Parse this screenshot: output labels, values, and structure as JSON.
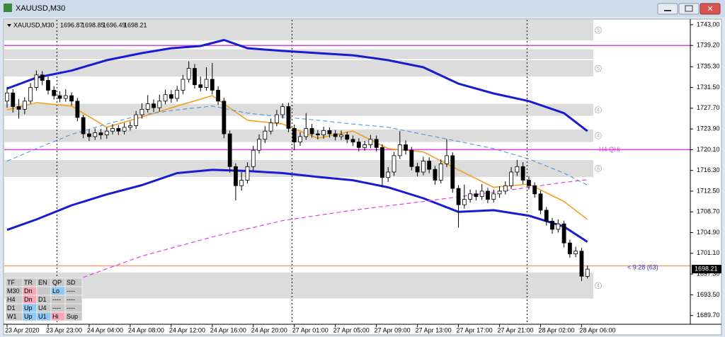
{
  "window_title": "XAUUSD,M30",
  "chart_data": {
    "type": "candlestick",
    "symbol": "XAUUSD,M30",
    "ylim": [
      1688.1,
      1743.9
    ],
    "yticks": [
      {
        "value": 1743.0,
        "label": "1743.00"
      },
      {
        "value": 1739.2,
        "label": "1739.20"
      },
      {
        "value": 1735.3,
        "label": "1735.30"
      },
      {
        "value": 1731.5,
        "label": "1731.50"
      },
      {
        "value": 1727.7,
        "label": "1727.70"
      },
      {
        "value": 1723.9,
        "label": "1723.90"
      },
      {
        "value": 1720.1,
        "label": "1720.10"
      },
      {
        "value": 1716.3,
        "label": "1716.30"
      },
      {
        "value": 1712.5,
        "label": "1712.50"
      },
      {
        "value": 1708.7,
        "label": "1708.70"
      },
      {
        "value": 1704.9,
        "label": "1704.90"
      },
      {
        "value": 1701.1,
        "label": "1701.10"
      },
      {
        "value": 1697.3,
        "label": "1697.30"
      },
      {
        "value": 1693.5,
        "label": "1693.50"
      },
      {
        "value": 1689.7,
        "label": "1689.70"
      }
    ],
    "categories": [
      "23 Apr 2020",
      null,
      null,
      null,
      null,
      null,
      null,
      "23 Apr 23:00",
      null,
      null,
      null,
      null,
      null,
      null,
      "24 Apr 04:00",
      null,
      null,
      null,
      null,
      null,
      null,
      "24 Apr 08:00",
      null,
      null,
      null,
      null,
      null,
      null,
      "24 Apr 12:00",
      null,
      null,
      null,
      null,
      null,
      null,
      "24 Apr 16:00",
      null,
      null,
      null,
      null,
      null,
      null,
      "24 Apr 20:00",
      null,
      null,
      null,
      null,
      null,
      null,
      "27 Apr 01:00",
      null,
      null,
      null,
      null,
      null,
      null,
      "27 Apr 05:00",
      null,
      null,
      null,
      null,
      null,
      null,
      "27 Apr 09:00",
      null,
      null,
      null,
      null,
      null,
      null,
      "27 Apr 13:00",
      null,
      null,
      null,
      null,
      null,
      null,
      "27 Apr 17:00",
      null,
      null,
      null,
      null,
      null,
      null,
      "27 Apr 21:00",
      null,
      null,
      null,
      null,
      null,
      null,
      "28 Apr 02:00",
      null,
      null,
      null,
      null,
      null,
      null,
      "28 Apr 06:00",
      null
    ],
    "up_color": "#ffffff",
    "down_color": "#000000",
    "wick_color": "#000000",
    "candles": [
      [
        1729,
        1731.6,
        1727.8,
        1730.5
      ],
      [
        1730.5,
        1731.2,
        1726.9,
        1728
      ],
      [
        1728,
        1729.4,
        1725.8,
        1727.5
      ],
      [
        1727.5,
        1729.7,
        1726.6,
        1729
      ],
      [
        1729,
        1732.3,
        1728.5,
        1731.5
      ],
      [
        1731.5,
        1734.6,
        1730.9,
        1733.8
      ],
      [
        1733.8,
        1734.5,
        1731.9,
        1732.8
      ],
      [
        1732.8,
        1733.5,
        1730.2,
        1731
      ],
      [
        1731,
        1731.7,
        1729.3,
        1730
      ],
      [
        1730,
        1730.8,
        1728.8,
        1729.5
      ],
      [
        1729.5,
        1731.2,
        1728.9,
        1730
      ],
      [
        1730,
        1730.6,
        1728.2,
        1729
      ],
      [
        1729,
        1729.6,
        1725.3,
        1726
      ],
      [
        1726,
        1726.5,
        1722.2,
        1723
      ],
      [
        1723,
        1723.8,
        1721.7,
        1722.5
      ],
      [
        1722.5,
        1724,
        1721.9,
        1723.2
      ],
      [
        1723.2,
        1723.9,
        1722,
        1722.8
      ],
      [
        1722.8,
        1724.2,
        1722.1,
        1723.5
      ],
      [
        1723.5,
        1724.8,
        1722.9,
        1724
      ],
      [
        1724,
        1724.6,
        1722.8,
        1723.5
      ],
      [
        1723.5,
        1725,
        1722.9,
        1724.2
      ],
      [
        1724.2,
        1725.3,
        1723.6,
        1724.5
      ],
      [
        1724.5,
        1727.2,
        1723.9,
        1726.5
      ],
      [
        1726.5,
        1728.6,
        1725.8,
        1727.5
      ],
      [
        1727.5,
        1730.1,
        1726.9,
        1728.5
      ],
      [
        1728.5,
        1729.3,
        1727,
        1727.8
      ],
      [
        1727.8,
        1730.2,
        1727.1,
        1729
      ],
      [
        1729,
        1731.1,
        1728.4,
        1730.2
      ],
      [
        1730.2,
        1731,
        1728.7,
        1729.5
      ],
      [
        1729.5,
        1731.8,
        1728.9,
        1731
      ],
      [
        1731,
        1733.8,
        1730.3,
        1733
      ],
      [
        1733,
        1736.3,
        1732.4,
        1735
      ],
      [
        1735,
        1735.8,
        1731.3,
        1732
      ],
      [
        1732,
        1733.5,
        1730.8,
        1731.5
      ],
      [
        1731.5,
        1735.2,
        1730.9,
        1733
      ],
      [
        1733,
        1736,
        1730.2,
        1731
      ],
      [
        1731,
        1731.7,
        1728.3,
        1729
      ],
      [
        1729,
        1729.6,
        1722.2,
        1723
      ],
      [
        1723,
        1723.6,
        1715.9,
        1717
      ],
      [
        1717,
        1717.6,
        1710.8,
        1713.5
      ],
      [
        1713.5,
        1716,
        1712.6,
        1714.5
      ],
      [
        1714.5,
        1717.8,
        1713.9,
        1717
      ],
      [
        1717,
        1720.8,
        1716.3,
        1720
      ],
      [
        1720,
        1722.9,
        1719.4,
        1722
      ],
      [
        1722,
        1724.4,
        1721.3,
        1723.5
      ],
      [
        1723.5,
        1725.8,
        1722.9,
        1725
      ],
      [
        1725,
        1727.4,
        1724.4,
        1726.5
      ],
      [
        1726.5,
        1728.6,
        1725.8,
        1728
      ],
      [
        1728,
        1728.7,
        1723.3,
        1724
      ],
      [
        1724,
        1724.7,
        1720,
        1721.5
      ],
      [
        1721.5,
        1723.3,
        1720.8,
        1722.5
      ],
      [
        1722.5,
        1726.8,
        1721.9,
        1724
      ],
      [
        1724,
        1724.8,
        1722.3,
        1723
      ],
      [
        1723,
        1723.7,
        1722,
        1722.8
      ],
      [
        1722.8,
        1724.3,
        1722.1,
        1723.6
      ],
      [
        1723.6,
        1724.2,
        1722.3,
        1723
      ],
      [
        1723,
        1723.7,
        1721.8,
        1722.5
      ],
      [
        1722.5,
        1723.6,
        1721.9,
        1722.8
      ],
      [
        1722.8,
        1723.4,
        1721.3,
        1722
      ],
      [
        1722,
        1722.7,
        1720.8,
        1721.5
      ],
      [
        1721.5,
        1722.2,
        1719.8,
        1720.5
      ],
      [
        1720.5,
        1721.7,
        1719.9,
        1721
      ],
      [
        1721,
        1722.8,
        1720.4,
        1722
      ],
      [
        1722,
        1722.7,
        1719.8,
        1720.5
      ],
      [
        1720.5,
        1721.1,
        1713.2,
        1715
      ],
      [
        1715,
        1716.9,
        1714.2,
        1716
      ],
      [
        1716,
        1719.7,
        1715.3,
        1719
      ],
      [
        1719,
        1723.5,
        1718.4,
        1721
      ],
      [
        1721,
        1721.8,
        1719.2,
        1720
      ],
      [
        1720,
        1720.6,
        1716.3,
        1717
      ],
      [
        1717,
        1717.7,
        1715.2,
        1716
      ],
      [
        1716,
        1718.8,
        1715.4,
        1718
      ],
      [
        1718,
        1718.7,
        1715.8,
        1716.5
      ],
      [
        1716.5,
        1717.1,
        1713.7,
        1714.5
      ],
      [
        1714.5,
        1718.3,
        1713.9,
        1717.5
      ],
      [
        1717.5,
        1722,
        1716.9,
        1719
      ],
      [
        1719,
        1719.6,
        1712.2,
        1713
      ],
      [
        1713,
        1713.6,
        1705.8,
        1710
      ],
      [
        1710,
        1713.7,
        1709.3,
        1711
      ],
      [
        1711,
        1712.8,
        1710.4,
        1712
      ],
      [
        1712,
        1712.7,
        1710.8,
        1711.5
      ],
      [
        1711.5,
        1713.8,
        1710.9,
        1712.5
      ],
      [
        1712.5,
        1713.1,
        1710.3,
        1711
      ],
      [
        1711,
        1712.8,
        1710.4,
        1712
      ],
      [
        1712,
        1713.4,
        1711.3,
        1712.5
      ],
      [
        1712.5,
        1714.3,
        1711.9,
        1713.5
      ],
      [
        1713.5,
        1716.9,
        1712.9,
        1716
      ],
      [
        1716,
        1718.2,
        1715.3,
        1717
      ],
      [
        1717,
        1717.8,
        1713.8,
        1714.5
      ],
      [
        1714.5,
        1715.2,
        1712.8,
        1713.5
      ],
      [
        1713.5,
        1714.1,
        1711.3,
        1712
      ],
      [
        1712,
        1712.6,
        1708.3,
        1709
      ],
      [
        1709,
        1709.6,
        1706.2,
        1707
      ],
      [
        1707,
        1707.6,
        1704.7,
        1705.5
      ],
      [
        1705.5,
        1707.3,
        1704.9,
        1706.5
      ],
      [
        1706.5,
        1707.1,
        1702.2,
        1703
      ],
      [
        1703,
        1703.6,
        1700.3,
        1701
      ],
      [
        1701,
        1702.3,
        1700.4,
        1701.5
      ],
      [
        1701.5,
        1702.1,
        1696,
        1696.9
      ],
      [
        1696.87,
        1698.85,
        1696.49,
        1698.21
      ]
    ],
    "lines": [
      {
        "color": "#1a1ad0",
        "width": 3,
        "dash": false,
        "x": [
          0,
          5,
          11,
          17,
          23,
          28,
          33,
          37,
          41,
          47,
          53,
          59,
          65,
          71,
          77,
          83,
          89,
          95,
          99
        ],
        "values": [
          1731.3,
          1733.3,
          1734.6,
          1736.5,
          1737.8,
          1738.7,
          1739.1,
          1740.2,
          1738.7,
          1738.2,
          1737.8,
          1737.4,
          1736.5,
          1735.2,
          1732.2,
          1730.4,
          1729,
          1726.8,
          1723.5
        ]
      },
      {
        "color": "#1a1ad0",
        "width": 3,
        "dash": false,
        "x": [
          0,
          5,
          11,
          17,
          23,
          29,
          35,
          41,
          47,
          53,
          59,
          65,
          71,
          77,
          83,
          89,
          95,
          99
        ],
        "values": [
          1705.4,
          1707.3,
          1709.9,
          1711.9,
          1713.6,
          1715.8,
          1716.4,
          1716.2,
          1715.8,
          1715.1,
          1714.5,
          1713.2,
          1711.2,
          1708.7,
          1709,
          1708,
          1706,
          1703.2
        ]
      },
      {
        "color": "#f5a020",
        "width": 1.6,
        "dash": false,
        "x": [
          0,
          5,
          11,
          17,
          23,
          29,
          35,
          41,
          47,
          53,
          59,
          65,
          71,
          77,
          83,
          89,
          95,
          99
        ],
        "values": [
          1727.4,
          1728.7,
          1728.1,
          1724.2,
          1726.1,
          1728.1,
          1730,
          1725.5,
          1724.8,
          1722.2,
          1723.5,
          1720.3,
          1719.7,
          1716.4,
          1713.2,
          1713.8,
          1710.6,
          1707.3
        ]
      },
      {
        "color": "#3a8ee0",
        "width": 1,
        "dash": true,
        "x": [
          0,
          5,
          11,
          17,
          23,
          29,
          35,
          41,
          47,
          53,
          59,
          65,
          71,
          77,
          83,
          89,
          95,
          99
        ],
        "values": [
          1718,
          1720.3,
          1722.9,
          1724.8,
          1726.5,
          1727.4,
          1728.1,
          1726.8,
          1726.1,
          1725.5,
          1724.8,
          1724.2,
          1722.9,
          1721.6,
          1720.3,
          1718.4,
          1715.8,
          1713.6
        ]
      },
      {
        "color": "#e040e0",
        "width": 1.2,
        "dash": true,
        "x": [
          13,
          23,
          35,
          47,
          59,
          71,
          83,
          95,
          99
        ],
        "values": [
          1696.7,
          1700.6,
          1704.1,
          1707.1,
          1709,
          1710.6,
          1712.3,
          1714.1,
          1714.6
        ]
      }
    ],
    "zones": [
      {
        "from": 1743.9,
        "to": 1740.1,
        "label": "5"
      },
      {
        "from": 1738.5,
        "to": 1736.7
      },
      {
        "from": 1736.5,
        "to": 1733.5,
        "label": "5"
      },
      {
        "from": 1728.5,
        "to": 1726.3,
        "label": "4"
      },
      {
        "from": 1723.8,
        "to": 1721.5,
        "label": "4"
      },
      {
        "from": 1718.2,
        "to": 1715.1,
        "label": "5"
      },
      {
        "from": 1697.6,
        "to": 1692.8,
        "label": "4"
      }
    ],
    "zone_color": "#dcdcdc",
    "levels": [
      {
        "value": 1739.2,
        "color": "#e040e0"
      },
      {
        "value": 1720.1,
        "color": "#e040e0",
        "label": "H4 QHi"
      },
      {
        "value": 1698.8,
        "color": "#f4a070"
      }
    ],
    "countdown": "< 9:28 (63)"
  },
  "panel": {
    "header": [
      "TF",
      "TR",
      "EN",
      "QP",
      "SD"
    ],
    "rows": [
      [
        "M30",
        "Dn",
        null,
        "Lo",
        "----"
      ],
      [
        "H4",
        "Dn",
        "D1",
        "----",
        "----"
      ],
      [
        "D1",
        "Up",
        "U4",
        "----",
        "----"
      ],
      [
        "W1",
        "Up",
        "U1",
        "Hi",
        "Sup"
      ]
    ],
    "cell_colors": [
      [
        "#c8c8c8",
        "#f4a8b8",
        "#c8c8c8",
        "#8fc8f0",
        "#c8c8c8"
      ],
      [
        "#c8c8c8",
        "#f4a8b8",
        "#c8c8c8",
        "#c8c8c8",
        "#c8c8c8"
      ],
      [
        "#c8c8c8",
        "#8fc8f0",
        "#c8c8c8",
        "#c8c8c8",
        "#c8c8c8"
      ],
      [
        "#c8c8c8",
        "#8fc8f0",
        "#8fc8f0",
        "#f4a8b8",
        "#c8c8c8"
      ]
    ]
  }
}
